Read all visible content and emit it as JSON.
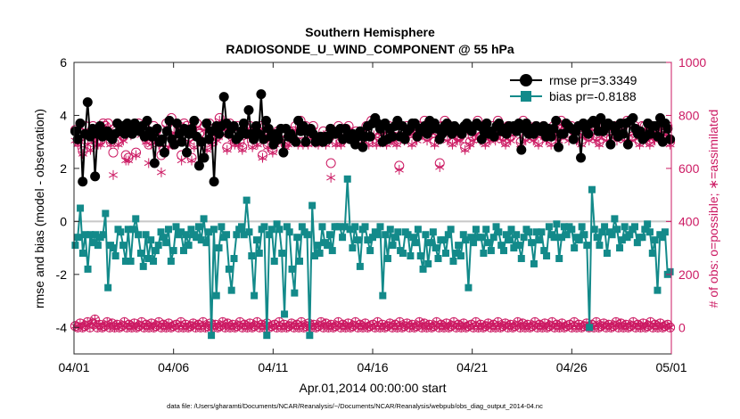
{
  "chart_data": {
    "type": "line",
    "title_line1": "Southern Hemisphere",
    "title_line2": "RADIOSONDE_U_WIND_COMPONENT @ 55 hPa",
    "xlabel": "Apr.01,2014 00:00:00 start",
    "ylabel_left": "rmse and bias (model - observation)",
    "ylabel_right": "# of obs: o=possible; ∗=assimilated",
    "footnote": "data file: /Users/gharamti/Documents/NCAR/Reanalysis/~/Documents/NCAR/Reanalysis/webpub/obs_diag_output_2014-04.nc",
    "x_ticks": [
      "04/01",
      "04/06",
      "04/11",
      "04/16",
      "04/21",
      "04/26",
      "05/01"
    ],
    "x_range_days": [
      0,
      30
    ],
    "y_left_ticks": [
      "6",
      "4",
      "2",
      "0",
      "-2",
      "-4"
    ],
    "y_left_range": [
      -5,
      6
    ],
    "y_right_ticks": [
      "1000",
      "800",
      "600",
      "400",
      "200",
      "0"
    ],
    "y_right_range": [
      -100,
      1000
    ],
    "colors": {
      "rmse": "#000000",
      "bias": "#138a8a",
      "obs": "#cc1a63",
      "zero_line": "#c8c8c8",
      "axis": "#262626"
    },
    "legend": [
      {
        "name": "rmse",
        "label": "rmse pr=3.3349"
      },
      {
        "name": "bias",
        "label": "bias pr=-0.8188"
      }
    ],
    "series": [
      {
        "name": "rmse",
        "y_axis": "left",
        "values": [
          3.4,
          3.1,
          3.7,
          1.5,
          3.3,
          4.5,
          3.2,
          3.5,
          1.7,
          3.3,
          3.6,
          3.2,
          3.3,
          3.4,
          3.2,
          3.1,
          3.3,
          3.7,
          3.4,
          3.6,
          3.3,
          3.7,
          3.5,
          3.3,
          3.7,
          3.5,
          3.4,
          3.6,
          3.2,
          3.8,
          3.4,
          3.2,
          2.2,
          3.5,
          3.0,
          3.1,
          2.6,
          3.4,
          3.8,
          3.1,
          2.9,
          3.7,
          3.3,
          3.0,
          3.5,
          2.6,
          3.3,
          3.5,
          3.8,
          3.2,
          2.1,
          3.0,
          2.4,
          3.7,
          3.1,
          3.4,
          1.5,
          3.6,
          3.3,
          3.6,
          4.7,
          3.7,
          3.3,
          3.5,
          3.6,
          3.1,
          3.2,
          3.4,
          3.7,
          3.3,
          4.2,
          3.3,
          3.1,
          3.6,
          3.3,
          4.8,
          3.1,
          3.8,
          3.5,
          3.2,
          2.9,
          3.3,
          3.1,
          3.5,
          2.6,
          3.5,
          3.2,
          3.3,
          3.1,
          3.0,
          3.8,
          3.4,
          3.6,
          3.0,
          3.4,
          3.5,
          3.3,
          3.0,
          3.1,
          3.2,
          3.0,
          3.2,
          3.1,
          3.5,
          3.3,
          3.3,
          3.4,
          3.5,
          3.1,
          3.5,
          3.3,
          3.1,
          3.3,
          2.9,
          3.2,
          3.4,
          2.8,
          3.2,
          3.6,
          3.2,
          3.7,
          3.9,
          3.7,
          3.5,
          3.0,
          3.7,
          3.1,
          3.5,
          3.2,
          3.6,
          3.8,
          3.2,
          3.6,
          3.1,
          3.4,
          3.5,
          3.7,
          3.7,
          3.2,
          3.5,
          3.4,
          3.6,
          3.3,
          3.8,
          3.5,
          3.7,
          3.5,
          3.1,
          3.3,
          3.6,
          3.7,
          3.4,
          3.3,
          3.6,
          3.5,
          3.4,
          3.3,
          3.6,
          3.7,
          3.5,
          3.4,
          3.6,
          3.7,
          3.6,
          3.1,
          3.4,
          3.7,
          3.3,
          3.4,
          3.2,
          3.6,
          3.7,
          3.4,
          3.5,
          3.3,
          3.6,
          3.5,
          3.6,
          3.4,
          3.7,
          2.7,
          3.5,
          3.7,
          3.3,
          3.5,
          3.3,
          3.6,
          3.5,
          3.4,
          3.6,
          3.2,
          3.5,
          3.2,
          3.5,
          3.8,
          2.8,
          3.3,
          3.3,
          3.7,
          3.6,
          3.5,
          3.1,
          3.4,
          3.6,
          2.4,
          3.7,
          3.5,
          3.3,
          3.7,
          3.8,
          3.7,
          3.4,
          3.9,
          3.4,
          3.6,
          3.7,
          2.9,
          3.6,
          3.4,
          3.2,
          3.7,
          3.3,
          3.7,
          2.9,
          3.8,
          3.9,
          3.5,
          3.3,
          3.4,
          3.1,
          3.2,
          3.7,
          3.3,
          3.6,
          3.6,
          3.2,
          3.9,
          3.0,
          3.7,
          3.5,
          3.1
        ]
      },
      {
        "name": "bias",
        "y_axis": "left",
        "values": [
          -0.9,
          -0.6,
          0.5,
          -1.2,
          -0.5,
          -1.8,
          -0.5,
          -0.8,
          -0.5,
          -0.9,
          -0.6,
          -0.5,
          0.3,
          -2.5,
          -0.9,
          -1.0,
          -1.3,
          -0.3,
          -0.4,
          -0.9,
          -1.5,
          -0.3,
          -1.5,
          -0.3,
          0.1,
          -0.5,
          -1.2,
          -1.7,
          -0.5,
          -1.4,
          -0.7,
          -1.5,
          -1.1,
          -0.9,
          -0.4,
          -0.6,
          -0.8,
          -0.3,
          -1.5,
          -1.1,
          -0.2,
          -0.5,
          -0.4,
          -1.1,
          -0.5,
          -0.9,
          -0.3,
          -0.5,
          -0.6,
          -0.2,
          -0.7,
          0.1,
          -0.8,
          -0.4,
          -4.3,
          -0.3,
          -2.8,
          -1.0,
          -0.2,
          -0.6,
          -0.5,
          -1.8,
          -2.6,
          -1.4,
          -0.5,
          -0.3,
          -0.2,
          -0.5,
          0.8,
          -0.4,
          -1.3,
          -2.8,
          -0.7,
          -1.2,
          -0.3,
          -0.2,
          -4.3,
          -0.5,
          -0.3,
          -1.5,
          -0.1,
          -0.3,
          -1.2,
          -3.5,
          -0.2,
          -0.4,
          -1.8,
          -2.7,
          -0.6,
          -1.5,
          -0.2,
          -0.4,
          -0.5,
          -4.3,
          0.6,
          -1.3,
          -0.9,
          -1.2,
          -0.2,
          -0.8,
          -0.9,
          -0.5,
          -1.1,
          -0.2,
          -0.2,
          -0.2,
          -0.6,
          -0.2,
          1.6,
          -0.3,
          -1.0,
          -0.2,
          -0.7,
          -1.7,
          -0.3,
          -0.2,
          -0.7,
          -1.1,
          -0.6,
          -0.4,
          -0.5,
          -0.2,
          -2.8,
          -0.5,
          -1.4,
          -0.3,
          -0.9,
          -0.6,
          -0.4,
          -1.1,
          -1.2,
          -0.4,
          -0.5,
          -1.3,
          -0.6,
          -0.8,
          -0.3,
          -1.3,
          -1.8,
          -0.5,
          -1.6,
          -0.8,
          -0.4,
          -1.0,
          -1.4,
          -0.7,
          -0.7,
          -1.2,
          -0.5,
          -0.3,
          -1.5,
          -1.2,
          -0.9,
          -1.3,
          -0.5,
          -0.7,
          -2.5,
          -0.6,
          -0.8,
          -0.3,
          -0.6,
          -0.6,
          -1.2,
          -0.3,
          -0.8,
          -1.1,
          -0.6,
          -0.2,
          -0.4,
          -0.9,
          -1.1,
          -0.5,
          -0.7,
          -0.3,
          -1.0,
          -0.5,
          -0.9,
          -1.4,
          -0.6,
          -0.3,
          -0.4,
          -0.8,
          -1.6,
          -0.4,
          -0.7,
          -0.4,
          -1.1,
          -1.3,
          -0.2,
          -0.5,
          -0.6,
          -0.1,
          -1.4,
          -0.6,
          -0.2,
          -0.5,
          -0.2,
          -0.3,
          -1.0,
          -0.6,
          -0.7,
          -0.2,
          -0.5,
          -0.9,
          -4.0,
          1.2,
          -0.3,
          -0.6,
          -0.9,
          -0.4,
          -0.2,
          -1.2,
          -0.4,
          -0.5,
          0.1,
          -0.3,
          -1.0,
          -0.7,
          -0.2,
          -0.6,
          -0.5,
          -0.3,
          -0.2,
          -0.8,
          -0.6,
          -0.6,
          -0.3,
          -0.1,
          -0.4,
          -1.2,
          -0.7,
          -2.6,
          -0.5,
          -0.6,
          -0.4,
          -2.0,
          -1.9
        ]
      },
      {
        "name": "obs_possible",
        "y_axis": "right",
        "values": [
          745,
          700,
          735,
          665,
          760,
          710,
          680,
          760,
          720,
          700,
          705,
          770,
          760,
          770,
          700,
          660,
          740,
          700,
          740,
          720,
          650,
          640,
          740,
          760,
          660,
          770,
          740,
          745,
          710,
          690,
          705,
          760,
          740,
          700,
          650,
          670,
          770,
          700,
          790,
          750,
          720,
          760,
          650,
          770,
          760,
          720,
          640,
          690,
          770,
          730,
          700,
          760,
          680,
          770,
          700,
          740,
          720,
          790,
          740,
          760,
          680,
          770,
          720,
          700,
          760,
          700,
          680,
          760,
          730,
          760,
          690,
          740,
          700,
          760,
          650,
          760,
          690,
          720,
          670,
          700,
          740,
          730,
          720,
          690,
          700,
          730,
          740,
          760,
          700,
          780,
          700,
          760,
          700,
          740,
          760,
          710,
          700,
          720,
          740,
          700,
          730,
          620,
          740,
          700,
          760,
          700,
          720,
          750,
          760,
          720,
          720,
          740,
          700,
          730,
          720,
          760,
          700,
          780,
          740,
          700,
          720,
          740,
          750,
          700,
          760,
          720,
          720,
          700,
          610,
          730,
          720,
          760,
          740,
          700,
          760,
          720,
          760,
          740,
          780,
          720,
          740,
          760,
          700,
          740,
          620,
          760,
          780,
          720,
          760,
          700,
          740,
          720,
          720,
          740,
          680,
          760,
          700,
          720,
          740,
          780,
          720,
          760,
          700,
          740,
          720,
          760,
          720,
          780,
          740,
          720,
          700,
          760,
          720,
          740,
          760,
          760,
          700,
          780,
          720,
          760,
          740,
          720,
          760,
          700,
          740,
          760,
          720,
          740,
          700,
          760,
          740,
          720,
          780,
          740,
          760,
          720,
          760,
          740,
          720,
          760,
          700,
          740,
          760,
          720,
          740,
          760,
          720,
          700,
          740,
          760,
          720,
          740,
          760,
          760,
          720,
          740,
          760,
          720,
          780,
          740,
          720,
          760,
          740,
          700,
          760,
          760,
          720,
          700,
          760,
          720,
          740,
          760,
          720,
          740,
          760,
          700
        ]
      },
      {
        "name": "obs_assimilated",
        "y_axis": "right",
        "values": [
          705,
          690,
          700,
          655,
          745,
          690,
          670,
          745,
          700,
          690,
          690,
          760,
          745,
          755,
          690,
          575,
          725,
          690,
          725,
          705,
          630,
          630,
          725,
          745,
          650,
          760,
          725,
          735,
          700,
          620,
          690,
          745,
          725,
          690,
          585,
          660,
          755,
          680,
          775,
          735,
          700,
          745,
          630,
          755,
          745,
          700,
          630,
          680,
          755,
          715,
          690,
          745,
          670,
          760,
          690,
          725,
          705,
          780,
          725,
          745,
          670,
          755,
          710,
          690,
          745,
          690,
          670,
          745,
          715,
          745,
          680,
          725,
          690,
          745,
          640,
          745,
          680,
          705,
          660,
          690,
          725,
          715,
          705,
          680,
          690,
          715,
          725,
          745,
          690,
          765,
          690,
          745,
          690,
          725,
          745,
          695,
          690,
          705,
          725,
          690,
          715,
          565,
          725,
          690,
          745,
          690,
          705,
          735,
          745,
          705,
          705,
          725,
          690,
          715,
          705,
          745,
          690,
          765,
          725,
          690,
          705,
          725,
          735,
          690,
          745,
          705,
          705,
          690,
          595,
          715,
          705,
          745,
          725,
          690,
          745,
          705,
          745,
          725,
          765,
          705,
          725,
          745,
          690,
          725,
          605,
          745,
          765,
          705,
          745,
          690,
          725,
          705,
          705,
          725,
          670,
          745,
          690,
          705,
          725,
          765,
          705,
          745,
          690,
          725,
          705,
          745,
          705,
          765,
          725,
          705,
          690,
          745,
          705,
          725,
          745,
          745,
          690,
          765,
          705,
          745,
          725,
          705,
          745,
          690,
          725,
          745,
          705,
          725,
          690,
          745,
          725,
          705,
          765,
          725,
          745,
          705,
          745,
          725,
          705,
          745,
          690,
          725,
          745,
          705,
          725,
          745,
          705,
          690,
          725,
          745,
          705,
          725,
          745,
          745,
          705,
          725,
          745,
          705,
          765,
          725,
          705,
          745,
          725,
          690,
          745,
          745,
          705,
          690,
          745,
          705,
          725,
          745,
          705,
          725,
          745,
          690
        ]
      },
      {
        "name": "obs_possible_low",
        "y_axis": "right",
        "values": [
          5,
          0,
          15,
          0,
          5,
          20,
          0,
          15,
          30,
          0,
          10,
          0,
          5,
          20,
          0,
          15,
          0,
          10,
          0,
          5,
          20,
          0,
          10,
          0,
          15,
          0,
          5,
          20,
          0,
          10,
          0,
          15,
          0,
          5,
          20,
          0,
          10,
          0,
          15,
          0,
          5,
          10,
          0,
          20,
          0,
          10,
          0,
          5,
          15,
          0,
          10,
          0,
          20,
          0,
          5,
          15,
          0,
          10,
          0,
          5,
          20,
          0,
          15,
          0,
          10,
          0,
          5,
          20,
          0,
          10,
          0,
          15,
          0,
          5,
          20,
          0,
          10,
          0,
          15,
          0,
          5,
          10,
          0,
          20,
          0,
          10,
          0,
          5,
          15,
          0,
          10,
          0,
          20,
          0,
          5,
          15,
          0,
          10,
          0,
          5,
          20,
          0,
          15,
          0,
          10,
          0,
          5,
          20,
          0,
          10,
          0,
          15,
          0,
          5,
          20,
          0,
          10,
          0,
          15,
          0,
          5,
          10,
          0,
          20,
          0,
          10,
          0,
          5,
          15,
          0,
          10,
          0,
          20,
          0,
          5,
          15,
          0,
          10,
          0,
          5,
          20,
          0,
          15,
          0,
          10,
          0,
          5,
          20,
          0,
          10,
          0,
          15,
          0,
          5,
          20,
          0,
          10,
          0,
          15,
          0,
          5,
          10,
          0,
          20,
          0,
          10,
          0,
          5,
          15,
          0,
          10,
          0,
          20,
          0,
          5,
          15,
          0,
          10,
          0,
          5,
          20,
          0,
          15,
          0,
          10,
          0,
          5,
          20,
          0,
          10,
          0,
          15,
          0,
          5,
          20,
          0,
          10,
          0,
          15,
          0,
          5,
          10,
          0,
          20,
          0,
          10,
          0,
          5,
          15,
          0,
          10,
          0,
          20,
          0,
          5,
          15,
          0,
          10,
          0,
          5,
          20,
          0,
          15,
          0,
          10,
          0,
          5,
          20,
          0,
          10,
          0,
          15,
          0,
          5,
          20,
          0,
          10,
          0,
          15,
          0,
          5,
          10,
          0
        ]
      }
    ]
  }
}
